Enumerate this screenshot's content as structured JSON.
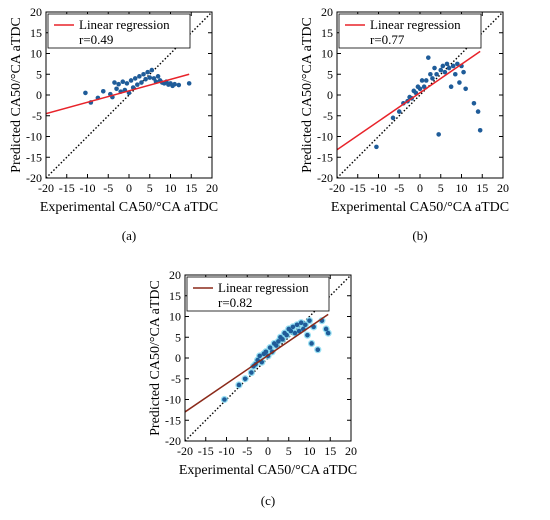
{
  "colors": {
    "point": "#1f5c99",
    "point_halo": "#7fd8f0",
    "regression_a": "#e8232a",
    "regression_b": "#e8232a",
    "regression_c": "#8b2a1a",
    "identity": "#000000",
    "frame": "#000000"
  },
  "chart_data": [
    {
      "type": "scatter",
      "panel": "a",
      "caption": "(a)",
      "xlabel": "Experimental CA50/°CA aTDC",
      "ylabel": "Predicted CA50/°CA aTDC",
      "xlim": [
        -20,
        20
      ],
      "ylim": [
        -20,
        20
      ],
      "xticks": [
        "-20",
        "-15",
        "-10",
        "-5",
        "0",
        "5",
        "10",
        "15",
        "20"
      ],
      "yticks": [
        "-20",
        "-15",
        "-10",
        "-5",
        "0",
        "5",
        "10",
        "15",
        "20"
      ],
      "legend": {
        "position": "top-left",
        "entries": [
          "Linear regression",
          "r=0.49"
        ]
      },
      "identity_line": {
        "from": [
          -20,
          -20
        ],
        "to": [
          20,
          20
        ],
        "style": "dotted"
      },
      "regression_line": {
        "from": [
          -20,
          -4.5
        ],
        "to": [
          14.5,
          5
        ]
      },
      "points": [
        [
          -10.5,
          0.5
        ],
        [
          -9.2,
          -1.8
        ],
        [
          -7.5,
          -0.7
        ],
        [
          -6.2,
          0.9
        ],
        [
          -4.5,
          0.2
        ],
        [
          -4.0,
          -0.5
        ],
        [
          -3.5,
          3.0
        ],
        [
          -3.0,
          1.5
        ],
        [
          -2.5,
          2.6
        ],
        [
          -2.0,
          0.8
        ],
        [
          -1.5,
          3.2
        ],
        [
          -1.0,
          1.2
        ],
        [
          -0.5,
          2.8
        ],
        [
          0.0,
          0.5
        ],
        [
          0.5,
          3.5
        ],
        [
          1.0,
          1.8
        ],
        [
          1.5,
          4.0
        ],
        [
          2.0,
          2.5
        ],
        [
          2.5,
          4.5
        ],
        [
          3.0,
          3.0
        ],
        [
          3.5,
          5.0
        ],
        [
          4.0,
          3.8
        ],
        [
          4.5,
          5.5
        ],
        [
          5.0,
          4.2
        ],
        [
          5.5,
          6.0
        ],
        [
          6.0,
          4.0
        ],
        [
          6.5,
          3.2
        ],
        [
          7.0,
          4.5
        ],
        [
          7.5,
          3.5
        ],
        [
          8.0,
          3.0
        ],
        [
          8.5,
          2.8
        ],
        [
          9.0,
          3.2
        ],
        [
          9.5,
          2.5
        ],
        [
          10.0,
          2.8
        ],
        [
          10.5,
          2.2
        ],
        [
          11.0,
          2.6
        ],
        [
          12.0,
          2.4
        ],
        [
          14.5,
          2.8
        ]
      ]
    },
    {
      "type": "scatter",
      "panel": "b",
      "caption": "(b)",
      "xlabel": "Experimental CA50/°CA aTDC",
      "ylabel": "Predicted CA50/°CA aTDC",
      "xlim": [
        -20,
        20
      ],
      "ylim": [
        -20,
        20
      ],
      "xticks": [
        "-20",
        "-15",
        "-10",
        "-5",
        "0",
        "5",
        "10",
        "15",
        "20"
      ],
      "yticks": [
        "-20",
        "-15",
        "-10",
        "-5",
        "0",
        "5",
        "10",
        "15",
        "20"
      ],
      "legend": {
        "position": "top-left",
        "entries": [
          "Linear regression",
          "r=0.77"
        ]
      },
      "identity_line": {
        "from": [
          -20,
          -20
        ],
        "to": [
          20,
          20
        ],
        "style": "dotted"
      },
      "regression_line": {
        "from": [
          -20,
          -13.2
        ],
        "to": [
          14.5,
          10.5
        ]
      },
      "points": [
        [
          -10.5,
          -12.5
        ],
        [
          -6.5,
          -5.5
        ],
        [
          -5.0,
          -4.0
        ],
        [
          -4.0,
          -2.0
        ],
        [
          -3.0,
          -1.5
        ],
        [
          -2.5,
          -0.5
        ],
        [
          -2.0,
          -0.8
        ],
        [
          -1.5,
          1.0
        ],
        [
          -1.0,
          0.5
        ],
        [
          -0.5,
          2.0
        ],
        [
          0.0,
          1.5
        ],
        [
          0.5,
          3.5
        ],
        [
          1.0,
          2.0
        ],
        [
          1.5,
          3.5
        ],
        [
          2.0,
          9.0
        ],
        [
          2.5,
          5.0
        ],
        [
          3.0,
          4.0
        ],
        [
          3.5,
          6.5
        ],
        [
          4.0,
          5.0
        ],
        [
          4.5,
          -9.5
        ],
        [
          5.0,
          6.0
        ],
        [
          5.5,
          7.0
        ],
        [
          6.0,
          5.5
        ],
        [
          6.5,
          7.5
        ],
        [
          7.0,
          6.5
        ],
        [
          7.5,
          2.0
        ],
        [
          8.0,
          7.0
        ],
        [
          8.5,
          5.0
        ],
        [
          9.0,
          7.5
        ],
        [
          9.5,
          3.0
        ],
        [
          10.0,
          7.0
        ],
        [
          10.5,
          5.5
        ],
        [
          11.0,
          1.5
        ],
        [
          13.0,
          -2.0
        ],
        [
          14.0,
          -4.0
        ],
        [
          14.5,
          -8.5
        ]
      ]
    },
    {
      "type": "scatter",
      "panel": "c",
      "caption": "(c)",
      "xlabel": "Experimental CA50/°CA aTDC",
      "ylabel": "Predicted CA50/°CA aTDC",
      "xlim": [
        -20,
        20
      ],
      "ylim": [
        -20,
        20
      ],
      "xticks": [
        "-20",
        "-15",
        "-10",
        "-5",
        "0",
        "5",
        "10",
        "15",
        "20"
      ],
      "yticks": [
        "-20",
        "-15",
        "-10",
        "-5",
        "0",
        "5",
        "10",
        "15",
        "20"
      ],
      "legend": {
        "position": "top-left",
        "entries": [
          "Linear regression",
          "r=0.82"
        ]
      },
      "identity_line": {
        "from": [
          -20,
          -20
        ],
        "to": [
          20,
          20
        ],
        "style": "dotted"
      },
      "regression_line": {
        "from": [
          -20,
          -13.0
        ],
        "to": [
          14.5,
          10.5
        ]
      },
      "points": [
        [
          -10.5,
          -10.0
        ],
        [
          -7.0,
          -6.5
        ],
        [
          -5.5,
          -5.0
        ],
        [
          -4.0,
          -3.5
        ],
        [
          -3.5,
          -2.0
        ],
        [
          -3.0,
          -1.5
        ],
        [
          -2.5,
          -0.5
        ],
        [
          -2.0,
          0.5
        ],
        [
          -1.5,
          -1.0
        ],
        [
          -1.0,
          1.0
        ],
        [
          -0.5,
          1.5
        ],
        [
          0.0,
          0.5
        ],
        [
          0.5,
          2.5
        ],
        [
          1.0,
          1.5
        ],
        [
          1.5,
          3.5
        ],
        [
          2.0,
          3.0
        ],
        [
          2.5,
          4.0
        ],
        [
          3.0,
          5.0
        ],
        [
          3.5,
          4.5
        ],
        [
          4.0,
          6.0
        ],
        [
          4.5,
          5.5
        ],
        [
          5.0,
          7.0
        ],
        [
          5.5,
          6.5
        ],
        [
          6.0,
          7.5
        ],
        [
          6.5,
          6.0
        ],
        [
          7.0,
          8.0
        ],
        [
          7.5,
          6.5
        ],
        [
          8.0,
          8.5
        ],
        [
          8.5,
          7.0
        ],
        [
          9.0,
          8.0
        ],
        [
          9.5,
          5.5
        ],
        [
          10.0,
          9.0
        ],
        [
          10.5,
          3.5
        ],
        [
          11.0,
          7.5
        ],
        [
          12.0,
          2.0
        ],
        [
          13.0,
          9.0
        ],
        [
          14.0,
          7.0
        ],
        [
          14.5,
          6.0
        ]
      ]
    }
  ]
}
